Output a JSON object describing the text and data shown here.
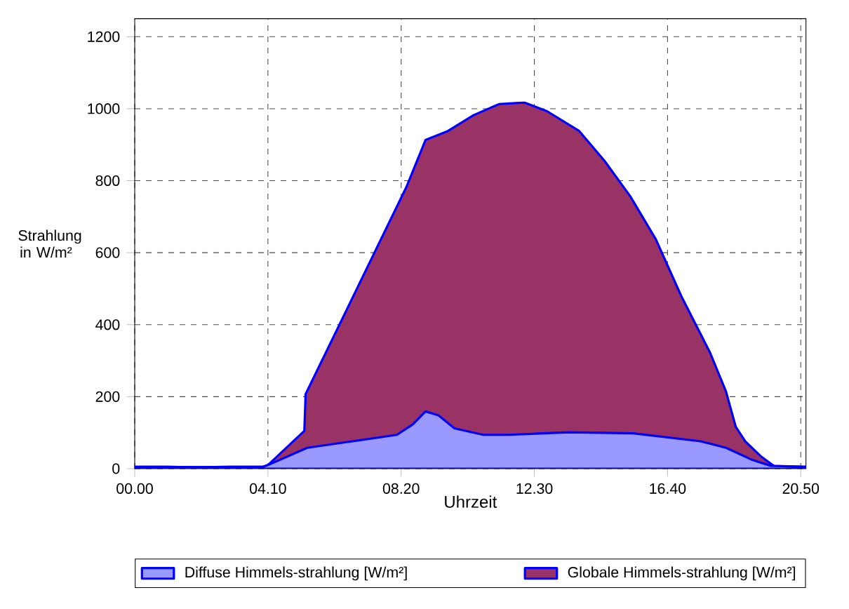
{
  "chart_data": {
    "type": "area",
    "xlabel": "Uhrzeit",
    "ylabel": "Strahlung in W/m²",
    "xlim": [
      0,
      20.66
    ],
    "ylim": [
      0,
      1250
    ],
    "xticks": [
      {
        "value": 0,
        "label": "00.00"
      },
      {
        "value": 4.1,
        "label": "04.10"
      },
      {
        "value": 8.2,
        "label": "08.20"
      },
      {
        "value": 12.3,
        "label": "12.30"
      },
      {
        "value": 16.4,
        "label": "16.40"
      },
      {
        "value": 20.5,
        "label": "20.50"
      }
    ],
    "yticks": [
      0,
      200,
      400,
      600,
      800,
      1000,
      1200
    ],
    "grid": true,
    "legend": "bottom",
    "series": [
      {
        "name": "Globale Himmels-strahlung [W/m²]",
        "color": "#993366",
        "x": [
          0,
          0.98,
          1.97,
          2.95,
          3.94,
          4.1,
          5.22,
          5.26,
          8.36,
          8.95,
          9.64,
          10.43,
          11.22,
          12.0,
          12.69,
          13.68,
          14.46,
          15.25,
          16.04,
          16.83,
          17.71,
          18.2,
          18.5,
          18.79,
          19.29,
          19.68,
          20.66
        ],
        "values": [
          5,
          5,
          4,
          5,
          5,
          10,
          105,
          207,
          782,
          913,
          938,
          982,
          1013,
          1017,
          993,
          938,
          855,
          757,
          637,
          478,
          322,
          214,
          116,
          76,
          33,
          7,
          5
        ]
      },
      {
        "name": "Diffuse Himmels-strahlung [W/m²]",
        "color": "#9999ff",
        "x": [
          0,
          0.98,
          1.97,
          2.95,
          3.94,
          4.1,
          5.31,
          6.69,
          8.07,
          8.56,
          8.95,
          9.35,
          9.84,
          10.73,
          11.51,
          13.38,
          15.35,
          17.42,
          18.2,
          18.99,
          19.58,
          20.66
        ],
        "values": [
          5,
          5,
          4,
          5,
          5,
          10,
          58,
          76,
          94,
          123,
          159,
          148,
          112,
          94,
          94,
          101,
          98,
          76,
          58,
          25,
          8,
          5
        ]
      }
    ]
  }
}
